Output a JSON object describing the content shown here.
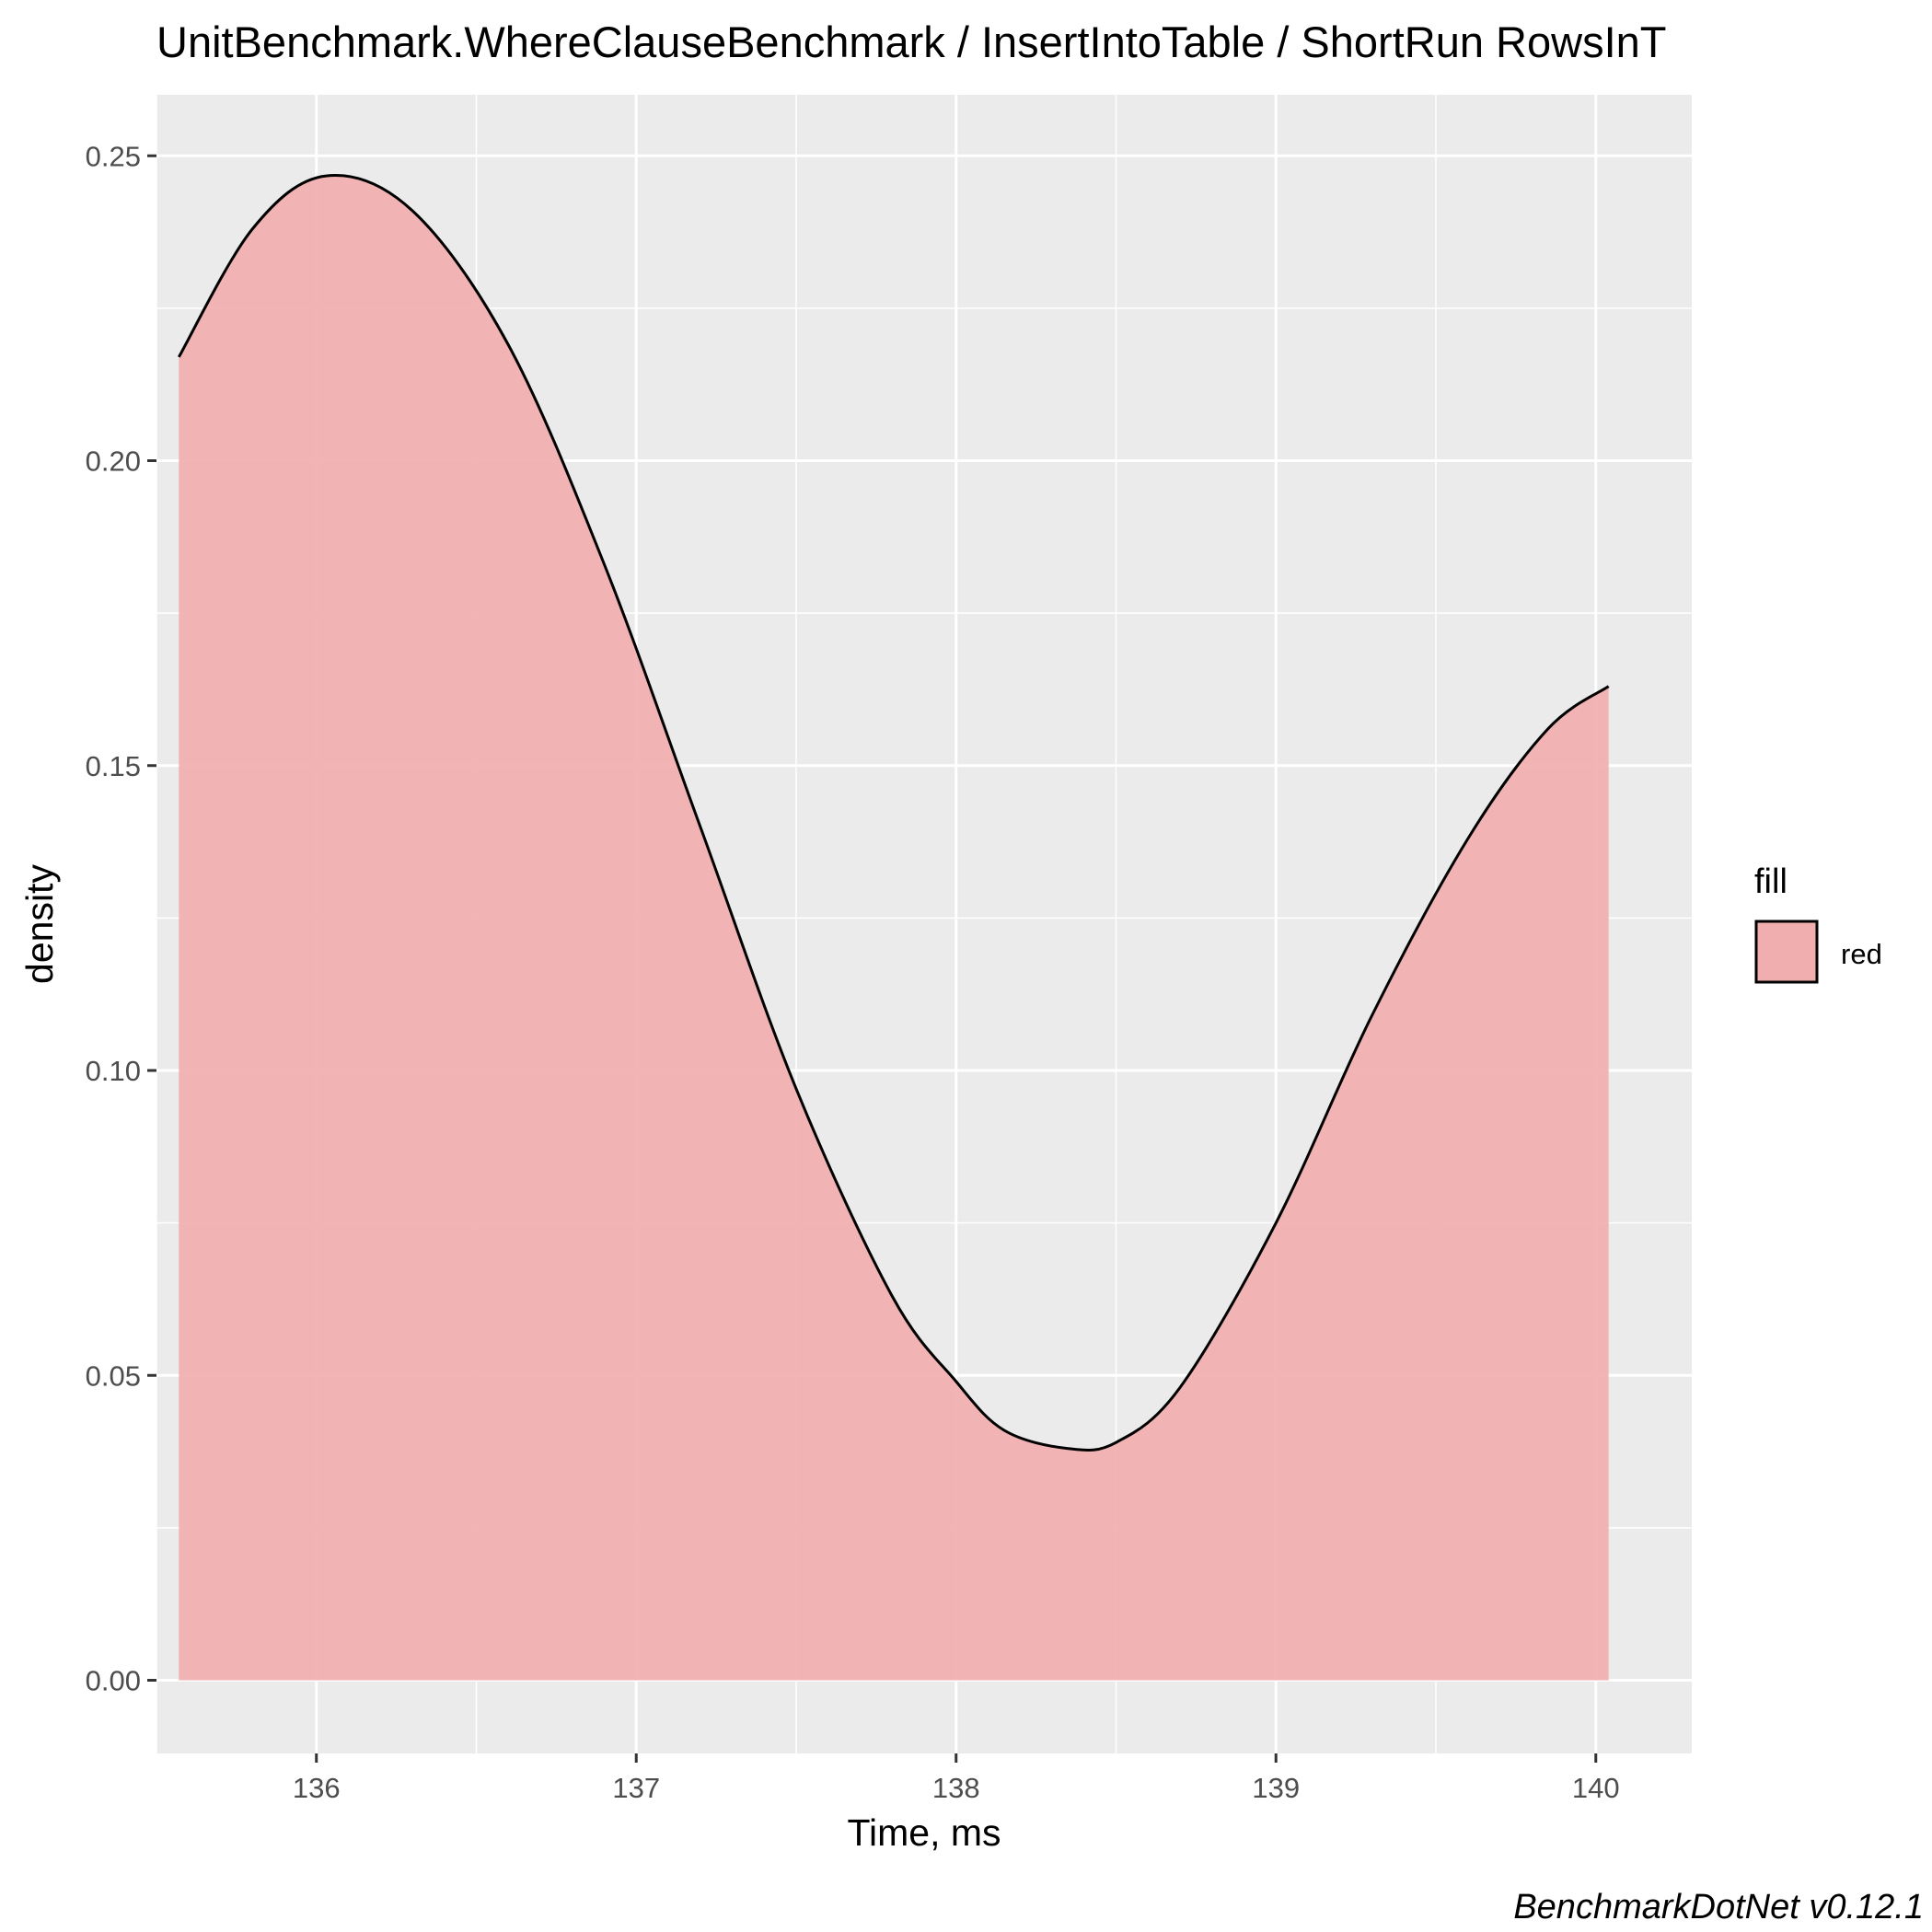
{
  "chart_data": {
    "type": "area",
    "title": "UnitBenchmark.WhereClauseBenchmark / InsertIntoTable / ShortRun RowsInT",
    "xlabel": "Time, ms",
    "ylabel": "density",
    "xlim": [
      135.5,
      140.3
    ],
    "ylim": [
      -0.012,
      0.26
    ],
    "x_ticks": [
      136,
      137,
      138,
      139,
      140
    ],
    "x_tick_labels": [
      "136",
      "137",
      "138",
      "139",
      "140"
    ],
    "y_ticks": [
      0.0,
      0.05,
      0.1,
      0.15,
      0.2,
      0.25
    ],
    "y_tick_labels": [
      "0.00",
      "0.05",
      "0.10",
      "0.15",
      "0.20",
      "0.25"
    ],
    "grid": true,
    "legend": {
      "title": "fill",
      "position": "right",
      "entries": [
        {
          "label": "red",
          "color": "#f1aeae"
        }
      ]
    },
    "caption": "BenchmarkDotNet v0.12.1",
    "fill_color": "#f1aeae",
    "line_color": "#000000",
    "panel_color": "#ebebeb",
    "series": [
      {
        "x": [
          135.57,
          135.8,
          136.03,
          136.3,
          136.6,
          136.9,
          137.2,
          137.5,
          137.8,
          138.0,
          138.15,
          138.35,
          138.5,
          138.7,
          139.0,
          139.3,
          139.6,
          139.85,
          140.04
        ],
        "values": [
          0.217,
          0.238,
          0.2467,
          0.241,
          0.219,
          0.183,
          0.14,
          0.097,
          0.063,
          0.049,
          0.041,
          0.038,
          0.039,
          0.048,
          0.075,
          0.109,
          0.138,
          0.156,
          0.163
        ]
      }
    ]
  }
}
